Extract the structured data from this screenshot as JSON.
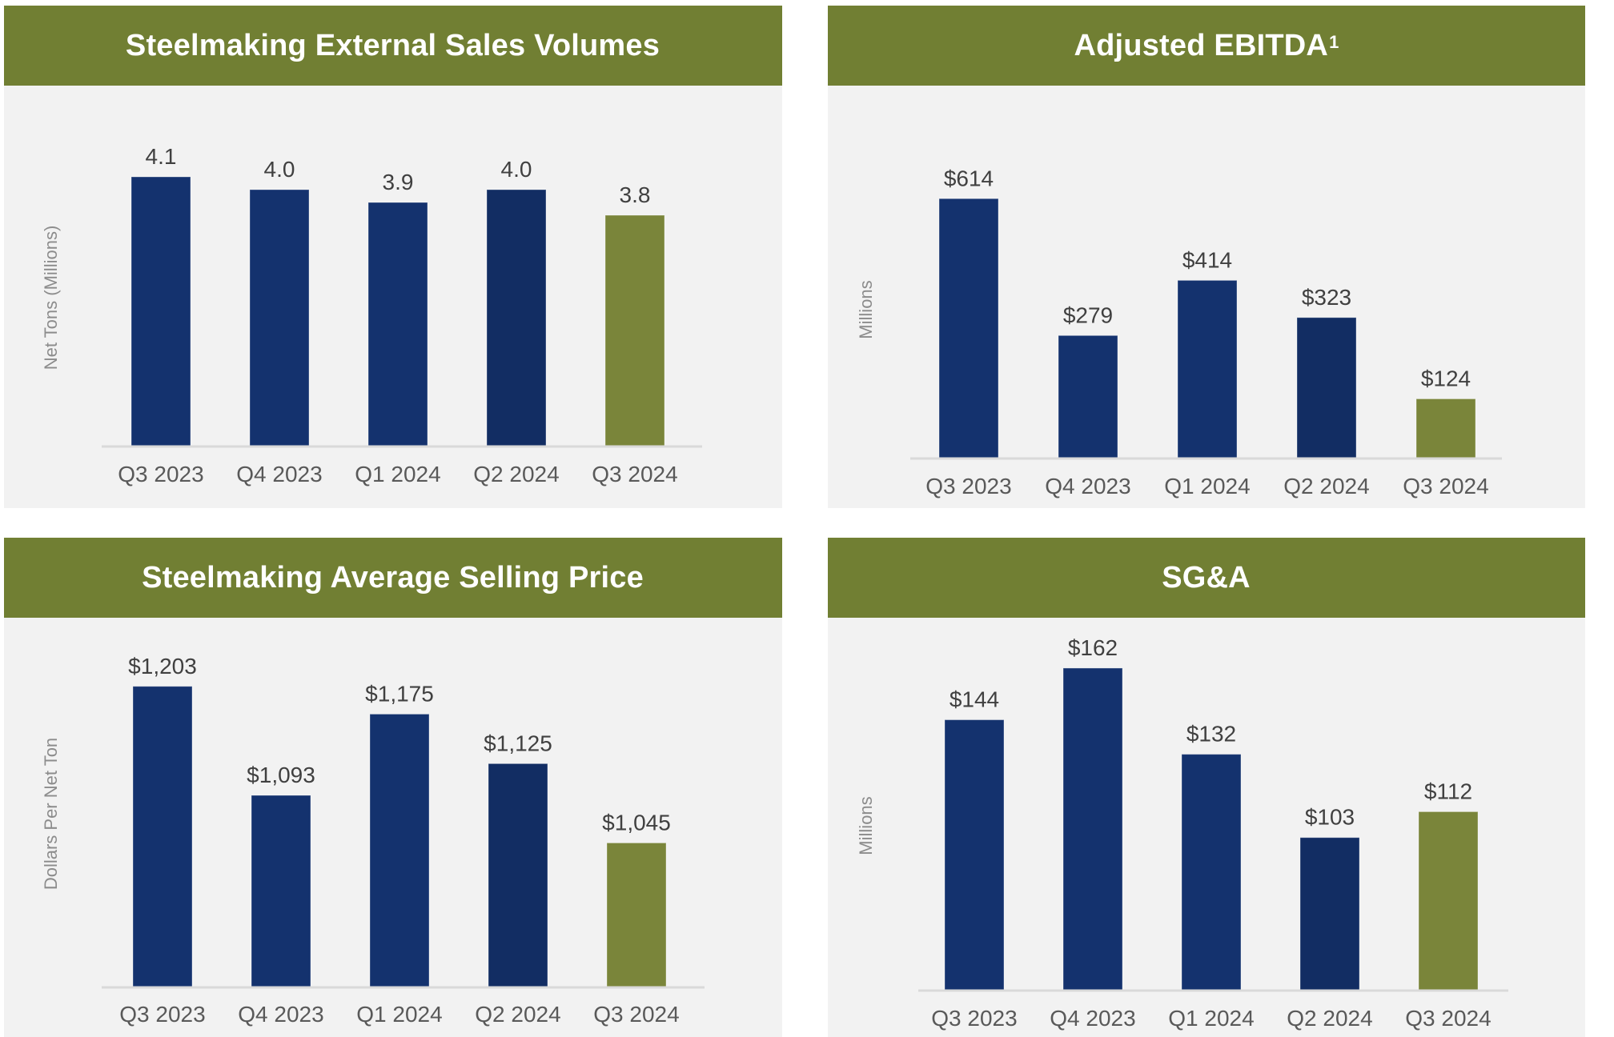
{
  "colors": {
    "header_bg": "#717f33",
    "header_text": "#ffffff",
    "panel_bg": "#f2f2f2",
    "bar_primary": "#14326e",
    "bar_primary_dark": "#122d63",
    "bar_highlight": "#7a853a",
    "axis_line": "#d9d9d9",
    "label_text": "#404040",
    "tick_text": "#595959",
    "ylabel_text": "#8c8c8c"
  },
  "chart_data": [
    {
      "id": "sales-volumes",
      "type": "bar",
      "title": "Steelmaking External Sales Volumes",
      "title_superscript": "",
      "xlabel": "",
      "ylabel": "Net Tons (Millions)",
      "categories": [
        "Q3 2023",
        "Q4 2023",
        "Q1 2024",
        "Q2 2024",
        "Q3 2024"
      ],
      "values": [
        4.1,
        4.0,
        3.9,
        4.0,
        3.8
      ],
      "data_labels": [
        "4.1",
        "4.0",
        "3.9",
        "4.0",
        "3.8"
      ],
      "highlight_index": 4,
      "ylim": [
        2.0,
        4.25
      ],
      "grid": false,
      "legend": "none"
    },
    {
      "id": "adjusted-ebitda",
      "type": "bar",
      "title": "Adjusted EBITDA",
      "title_superscript": "1",
      "xlabel": "",
      "ylabel": "Millions",
      "categories": [
        "Q3 2023",
        "Q4 2023",
        "Q1 2024",
        "Q2 2024",
        "Q3 2024"
      ],
      "values": [
        614,
        279,
        414,
        323,
        124
      ],
      "data_labels": [
        "$614",
        "$279",
        "$414",
        "$323",
        "$124"
      ],
      "highlight_index": 4,
      "ylim": [
        -20,
        685
      ],
      "grid": false,
      "legend": "none"
    },
    {
      "id": "average-selling-price",
      "type": "bar",
      "title": "Steelmaking Average Selling Price",
      "title_superscript": "",
      "xlabel": "",
      "ylabel": "Dollars Per Net Ton",
      "categories": [
        "Q3 2023",
        "Q4 2023",
        "Q1 2024",
        "Q2 2024",
        "Q3 2024"
      ],
      "values": [
        1203,
        1093,
        1175,
        1125,
        1045
      ],
      "data_labels": [
        "$1,203",
        "$1,093",
        "$1,175",
        "$1,125",
        "$1,045"
      ],
      "highlight_index": 4,
      "ylim": [
        900,
        1223
      ],
      "grid": false,
      "legend": "none"
    },
    {
      "id": "sga",
      "type": "bar",
      "title": "SG&A",
      "title_superscript": "",
      "xlabel": "",
      "ylabel": "Millions",
      "categories": [
        "Q3 2023",
        "Q4 2023",
        "Q1 2024",
        "Q2 2024",
        "Q3 2024"
      ],
      "values": [
        144,
        162,
        132,
        103,
        112
      ],
      "data_labels": [
        "$144",
        "$162",
        "$132",
        "$103",
        "$112"
      ],
      "highlight_index": 4,
      "ylim": [
        50,
        167
      ],
      "grid": false,
      "legend": "none"
    }
  ]
}
